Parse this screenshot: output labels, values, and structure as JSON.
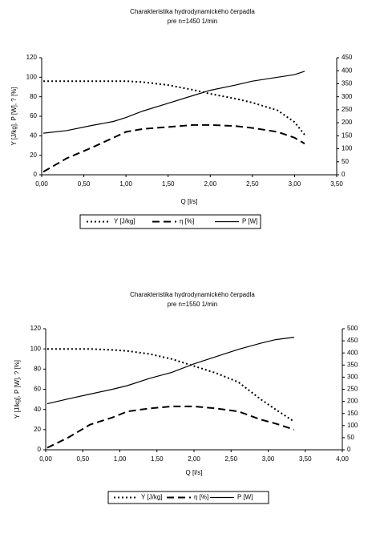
{
  "chart_data": [
    {
      "type": "line",
      "title": "Charakteristika hydrodynamického čerpadla",
      "subtitle": "pre n=1450 1/min",
      "x_label": "Q [l/s]",
      "y_label": "Y [J/kg], P [W], ? [%]",
      "x": [
        0.02,
        0.3,
        0.6,
        0.85,
        1.0,
        1.2,
        1.5,
        1.8,
        2.0,
        2.3,
        2.5,
        2.8,
        3.0,
        3.12
      ],
      "series": [
        {
          "name": "Y [J/kg]",
          "color": "#000000",
          "dash": "dot",
          "values": [
            96,
            96,
            96,
            96,
            96,
            95,
            92,
            87,
            83,
            78,
            74,
            66,
            54,
            41
          ]
        },
        {
          "name": "η [%]",
          "color": "#000000",
          "dash": "dash",
          "values": [
            3,
            17,
            28,
            38,
            44,
            47,
            49,
            51,
            51,
            50,
            48,
            44,
            38,
            32
          ]
        },
        {
          "name": "P [W]",
          "color": "#000000",
          "dash": "solid",
          "axis": "y2",
          "values": [
            160,
            170,
            190,
            205,
            220,
            245,
            275,
            305,
            325,
            345,
            360,
            375,
            385,
            398
          ]
        }
      ],
      "xlim": [
        0,
        3.5
      ],
      "xticks": [
        {
          "value": 0,
          "label": "0,00"
        },
        {
          "value": 0.5,
          "label": "0,50"
        },
        {
          "value": 1,
          "label": "1,00"
        },
        {
          "value": 1.5,
          "label": "1,50"
        },
        {
          "value": 2,
          "label": "2,00"
        },
        {
          "value": 2.5,
          "label": "2,50"
        },
        {
          "value": 3,
          "label": "3,00"
        },
        {
          "value": 3.5,
          "label": "3,50"
        }
      ],
      "ylim": [
        0,
        120
      ],
      "yticks": [
        0,
        20,
        40,
        60,
        80,
        100,
        120
      ],
      "y2lim": [
        0,
        450
      ],
      "y2ticks": [
        0,
        50,
        100,
        150,
        200,
        250,
        300,
        350,
        400,
        450
      ]
    },
    {
      "type": "line",
      "title": "Charakteristika hydrodynamického čerpadla",
      "subtitle": "pre n=1550 1/min",
      "x_label": "Q [l/s]",
      "y_label": "Y [J/kg], P [W], ? [%]",
      "x": [
        0.02,
        0.3,
        0.6,
        0.9,
        1.1,
        1.4,
        1.7,
        2.0,
        2.3,
        2.6,
        2.9,
        3.1,
        3.35
      ],
      "series": [
        {
          "name": "Y [J/kg]",
          "color": "#000000",
          "dash": "dot",
          "values": [
            100,
            100,
            100,
            99,
            98,
            95,
            90,
            83,
            76,
            67,
            50,
            40,
            28
          ]
        },
        {
          "name": "η [%]",
          "color": "#000000",
          "dash": "dash",
          "values": [
            2,
            12,
            25,
            32,
            38,
            41,
            43,
            43,
            41,
            38,
            30,
            26,
            20
          ]
        },
        {
          "name": "P [W]",
          "color": "#000000",
          "dash": "solid",
          "axis": "y2",
          "values": [
            190,
            210,
            230,
            250,
            265,
            295,
            320,
            355,
            385,
            415,
            440,
            455,
            465
          ]
        }
      ],
      "xlim": [
        0,
        4
      ],
      "xticks": [
        {
          "value": 0,
          "label": "0,00"
        },
        {
          "value": 0.5,
          "label": "0,50"
        },
        {
          "value": 1,
          "label": "1,00"
        },
        {
          "value": 1.5,
          "label": "1,50"
        },
        {
          "value": 2,
          "label": "2,00"
        },
        {
          "value": 2.5,
          "label": "2,50"
        },
        {
          "value": 3,
          "label": "3,00"
        },
        {
          "value": 3.5,
          "label": "3,50"
        },
        {
          "value": 4,
          "label": "4,00"
        }
      ],
      "ylim": [
        0,
        120
      ],
      "yticks": [
        0,
        20,
        40,
        60,
        80,
        100,
        120
      ],
      "y2lim": [
        0,
        500
      ],
      "y2ticks": [
        0,
        50,
        100,
        150,
        200,
        250,
        300,
        350,
        400,
        450,
        500
      ]
    }
  ]
}
